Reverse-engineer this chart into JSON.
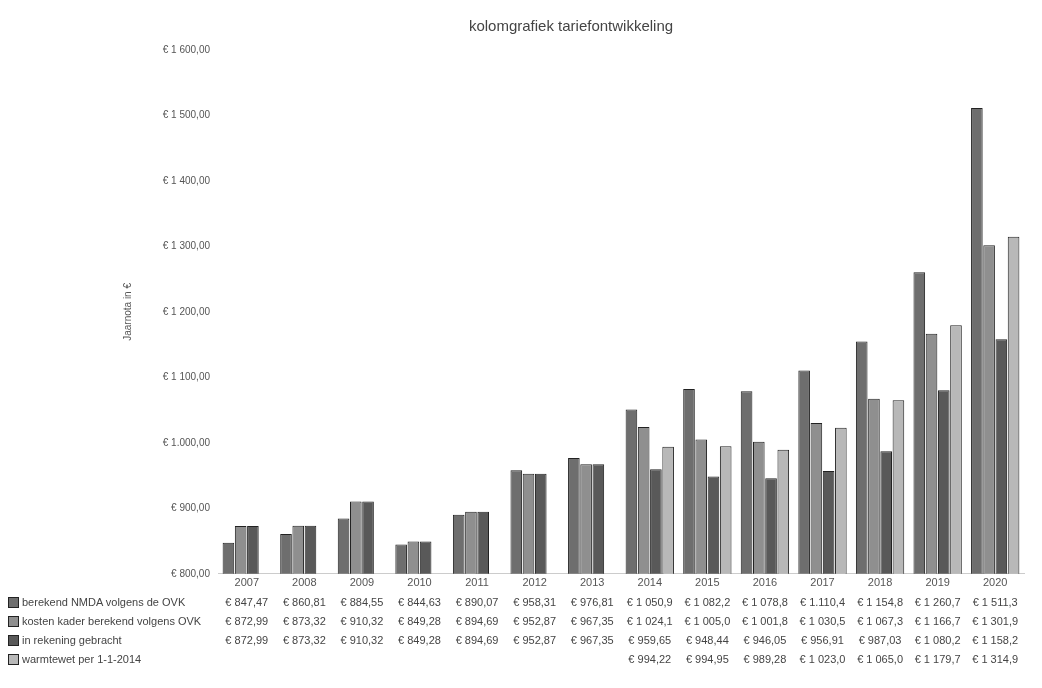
{
  "chart_data": {
    "type": "bar",
    "title": "kolomgrafiek tariefontwikkeling",
    "ylabel": "Jaarnota in €",
    "categories": [
      "2007",
      "2008",
      "2009",
      "2010",
      "2011",
      "2012",
      "2013",
      "2014",
      "2015",
      "2016",
      "2017",
      "2018",
      "2019",
      "2020"
    ],
    "series": [
      {
        "name": "berekend NMDA volgens de OVK",
        "color": "#6e6e6e",
        "values": [
          847.47,
          860.81,
          884.55,
          844.63,
          890.07,
          958.31,
          976.81,
          1050.9,
          1082.2,
          1078.8,
          1110.4,
          1154.8,
          1260.7,
          1511.3
        ],
        "value_labels": [
          "€ 847,47",
          "€ 860,81",
          "€ 884,55",
          "€ 844,63",
          "€ 890,07",
          "€ 958,31",
          "€ 976,81",
          "€ 1 050,9",
          "€ 1 082,2",
          "€ 1 078,8",
          "€ 1.110,4",
          "€ 1 154,8",
          "€ 1 260,7",
          "€ 1 511,3"
        ]
      },
      {
        "name": "kosten kader berekend volgens OVK",
        "color": "#8f8f8f",
        "values": [
          872.99,
          873.32,
          910.32,
          849.28,
          894.69,
          952.87,
          967.35,
          1024.1,
          1005.0,
          1001.8,
          1030.5,
          1067.3,
          1166.7,
          1301.9
        ],
        "value_labels": [
          "€ 872,99",
          "€ 873,32",
          "€ 910,32",
          "€ 849,28",
          "€ 894,69",
          "€ 952,87",
          "€ 967,35",
          "€ 1 024,1",
          "€ 1 005,0",
          "€ 1 001,8",
          "€ 1 030,5",
          "€ 1 067,3",
          "€ 1 166,7",
          "€ 1 301,9"
        ]
      },
      {
        "name": "in rekening gebracht",
        "color": "#595959",
        "values": [
          872.99,
          873.32,
          910.32,
          849.28,
          894.69,
          952.87,
          967.35,
          959.65,
          948.44,
          946.05,
          956.91,
          987.03,
          1080.2,
          1158.2
        ],
        "value_labels": [
          "€ 872,99",
          "€ 873,32",
          "€ 910,32",
          "€ 849,28",
          "€ 894,69",
          "€ 952,87",
          "€ 967,35",
          "€ 959,65",
          "€ 948,44",
          "€ 946,05",
          "€ 956,91",
          "€ 987,03",
          "€ 1 080,2",
          "€ 1 158,2"
        ]
      },
      {
        "name": "warmtewet per 1-1-2014",
        "color": "#b8b8b8",
        "values": [
          null,
          null,
          null,
          null,
          null,
          null,
          null,
          994.22,
          994.95,
          989.28,
          1023.0,
          1065.0,
          1179.7,
          1314.9
        ],
        "value_labels": [
          null,
          null,
          null,
          null,
          null,
          null,
          null,
          "€ 994,22",
          "€ 994,95",
          "€ 989,28",
          "€ 1 023,0",
          "€ 1 065,0",
          "€ 1 179,7",
          "€ 1 314,9"
        ]
      }
    ],
    "ylim": [
      800,
      1600
    ],
    "yticks": [
      {
        "value": 800,
        "label": "€ 800,00"
      },
      {
        "value": 900,
        "label": "€ 900,00"
      },
      {
        "value": 1000,
        "label": "€ 1.000,00"
      },
      {
        "value": 1100,
        "label": "€ 1 100,00"
      },
      {
        "value": 1200,
        "label": "€ 1 200,00"
      },
      {
        "value": 1300,
        "label": "€ 1 300,00"
      },
      {
        "value": 1400,
        "label": "€ 1 400,00"
      },
      {
        "value": 1500,
        "label": "€ 1 500,00"
      },
      {
        "value": 1600,
        "label": "€ 1 600,00"
      }
    ],
    "grid": false,
    "legend": "bottom"
  }
}
